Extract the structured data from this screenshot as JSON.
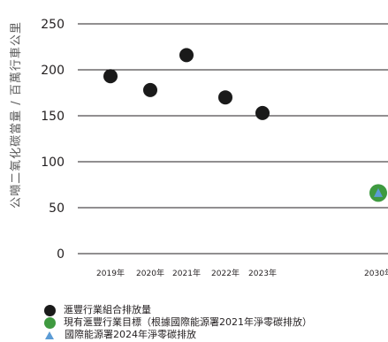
{
  "chart_data": {
    "type": "scatter",
    "ylabel": "公噸二氧化碳當量 / 百萬行車公里",
    "ylim": [
      0,
      250
    ],
    "yticks": [
      0,
      50,
      100,
      150,
      200,
      250
    ],
    "x_categories": [
      "2019年",
      "2020年",
      "2021年",
      "2022年",
      "2023年",
      "2030年"
    ],
    "grid": "horizontal",
    "series": [
      {
        "name": "滙豐行業組合排放量",
        "color": "#1a1a1a",
        "marker": "circle",
        "points": [
          {
            "x": "2019年",
            "y": 193
          },
          {
            "x": "2020年",
            "y": 178
          },
          {
            "x": "2021年",
            "y": 216
          },
          {
            "x": "2022年",
            "y": 170
          },
          {
            "x": "2023年",
            "y": 153
          }
        ]
      },
      {
        "name": "現有滙豐行業目標（根據國際能源署2021年淨零碳排放）",
        "color": "#3f9a40",
        "marker": "circle",
        "points": [
          {
            "x": "2030年",
            "y": 66
          }
        ]
      },
      {
        "name": "國際能源署2024年淨零碳排放",
        "color": "#5b9bd5",
        "marker": "triangle",
        "points": [
          {
            "x": "2030年",
            "y": 66
          }
        ]
      }
    ],
    "legend_position": "bottom-left"
  }
}
